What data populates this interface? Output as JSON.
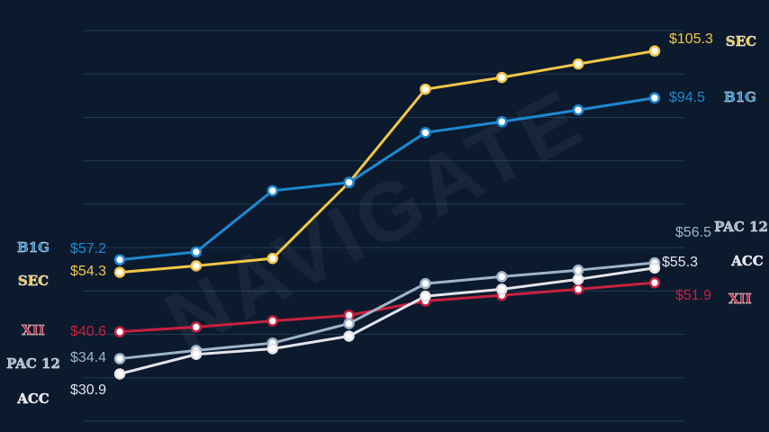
{
  "chart_data": {
    "type": "line",
    "watermark": "NAVIGATE",
    "x": [
      1,
      2,
      3,
      4,
      5,
      6,
      7,
      8
    ],
    "xlim": [
      1,
      8
    ],
    "ylim": [
      20,
      110
    ],
    "yticks": [
      20,
      30,
      40,
      50,
      60,
      70,
      80,
      90,
      100,
      110
    ],
    "grid": true,
    "series": [
      {
        "name": "SEC",
        "color": "#f2c745",
        "values": [
          54.3,
          55.8,
          57.5,
          75,
          96.5,
          99.2,
          102.3,
          105.3
        ],
        "value_labels": [
          "$54.3",
          null,
          null,
          null,
          null,
          null,
          null,
          "$105.3"
        ]
      },
      {
        "name": "B1G",
        "color": "#1e88d0",
        "values": [
          57.2,
          59,
          73.1,
          75,
          86.5,
          89,
          91.7,
          94.5
        ],
        "value_labels": [
          "$57.2",
          null,
          null,
          null,
          null,
          null,
          null,
          "$94.5"
        ]
      },
      {
        "name": "XII",
        "color": "#c8203f",
        "values": [
          40.6,
          41.7,
          43.1,
          44.4,
          47.7,
          49,
          50.4,
          51.9
        ],
        "value_labels": [
          "$40.6",
          null,
          null,
          null,
          null,
          null,
          null,
          "$51.9"
        ]
      },
      {
        "name": "PAC 12",
        "color": "#9fb4c8",
        "values": [
          34.4,
          36.3,
          38,
          42.5,
          51.7,
          53.3,
          54.8,
          56.5
        ],
        "value_labels": [
          "$34.4",
          null,
          null,
          null,
          null,
          null,
          null,
          "$56.5"
        ]
      },
      {
        "name": "ACC",
        "color": "#e4e4ea",
        "values": [
          30.9,
          35.4,
          36.7,
          39.6,
          48.8,
          50.4,
          52.7,
          55.3
        ],
        "value_labels": [
          "$30.9",
          null,
          null,
          null,
          null,
          null,
          null,
          "$55.3"
        ]
      }
    ]
  }
}
